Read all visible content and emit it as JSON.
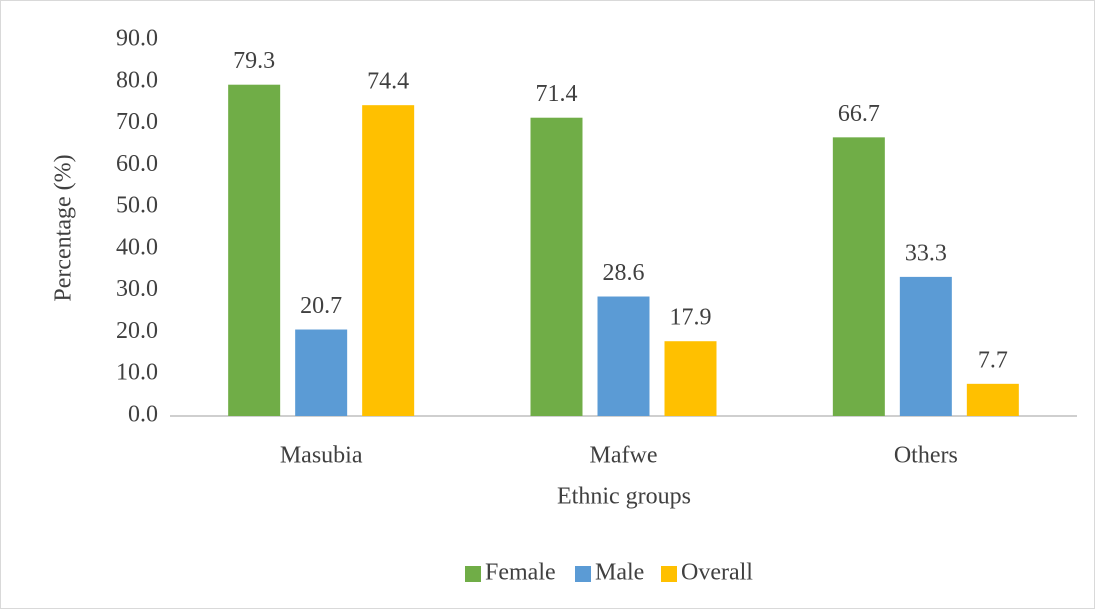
{
  "chart_data": {
    "type": "bar",
    "x_label": "Ethnic groups",
    "y_label": "Percentage (%)",
    "categories": [
      "Masubia",
      "Mafwe",
      "Others"
    ],
    "series": [
      {
        "name": "Female",
        "color": "#70ad47",
        "values": [
          79.3,
          71.4,
          66.7
        ]
      },
      {
        "name": "Male",
        "color": "#5b9bd5",
        "values": [
          20.7,
          28.6,
          33.3
        ]
      },
      {
        "name": "Overall",
        "color": "#ffc000",
        "values": [
          74.4,
          17.9,
          7.7
        ]
      }
    ],
    "ylim": [
      0,
      90
    ],
    "yticks": [
      {
        "value": 0,
        "label": "0.0"
      },
      {
        "value": 10,
        "label": "10.0"
      },
      {
        "value": 20,
        "label": "20.0"
      },
      {
        "value": 30,
        "label": "30.0"
      },
      {
        "value": 40,
        "label": "40.0"
      },
      {
        "value": 50,
        "label": "50.0"
      },
      {
        "value": 60,
        "label": "60.0"
      },
      {
        "value": 70,
        "label": "70.0"
      },
      {
        "value": 80,
        "label": "80.0"
      },
      {
        "value": 90,
        "label": "90.0"
      }
    ],
    "grid": false,
    "legend": "bottom"
  }
}
